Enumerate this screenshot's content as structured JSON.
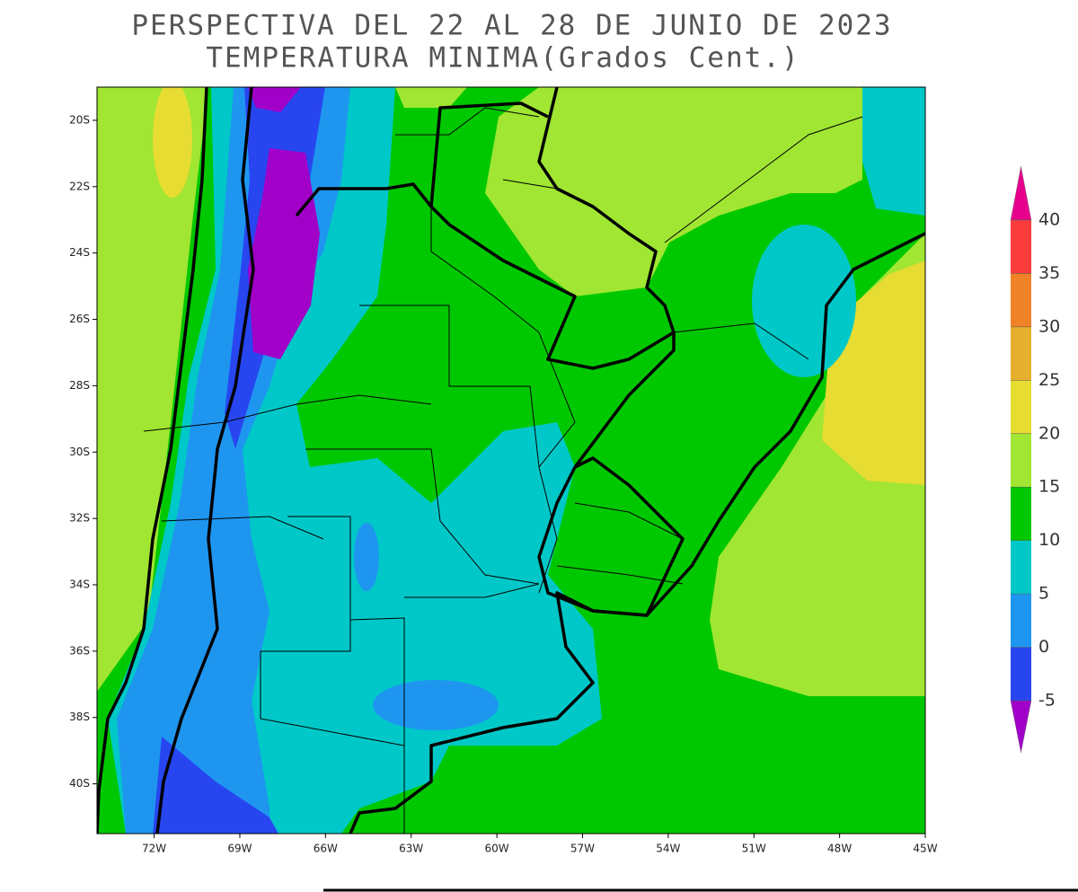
{
  "map": {
    "title_lines": [
      "PERSPECTIVA DEL 22 AL 28 DE JUNIO DE 2023",
      "TEMPERATURA MINIMA(Grados Cent.)"
    ],
    "xlim": [
      -74,
      -45
    ],
    "ylim": [
      -41.5,
      -19
    ],
    "xticks": [
      {
        "value": -72,
        "label": "72W"
      },
      {
        "value": -69,
        "label": "69W"
      },
      {
        "value": -66,
        "label": "66W"
      },
      {
        "value": -63,
        "label": "63W"
      },
      {
        "value": -60,
        "label": "60W"
      },
      {
        "value": -57,
        "label": "57W"
      },
      {
        "value": -54,
        "label": "54W"
      },
      {
        "value": -51,
        "label": "51W"
      },
      {
        "value": -48,
        "label": "48W"
      },
      {
        "value": -45,
        "label": "45W"
      }
    ],
    "yticks": [
      {
        "value": -20,
        "label": "20S"
      },
      {
        "value": -22,
        "label": "22S"
      },
      {
        "value": -24,
        "label": "24S"
      },
      {
        "value": -26,
        "label": "26S"
      },
      {
        "value": -28,
        "label": "28S"
      },
      {
        "value": -30,
        "label": "30S"
      },
      {
        "value": -32,
        "label": "32S"
      },
      {
        "value": -34,
        "label": "34S"
      },
      {
        "value": -36,
        "label": "36S"
      },
      {
        "value": -38,
        "label": "38S"
      },
      {
        "value": -40,
        "label": "40S"
      }
    ],
    "colorbar": {
      "levels": [
        -5,
        0,
        5,
        10,
        15,
        20,
        25,
        30,
        35,
        40
      ],
      "colors": [
        "#a000c8",
        "#2846f0",
        "#1e96f0",
        "#00c8c8",
        "#00c800",
        "#a0e632",
        "#e6dc32",
        "#e6af2d",
        "#f08228",
        "#fa3c3c",
        "#e6008c"
      ]
    }
  }
}
